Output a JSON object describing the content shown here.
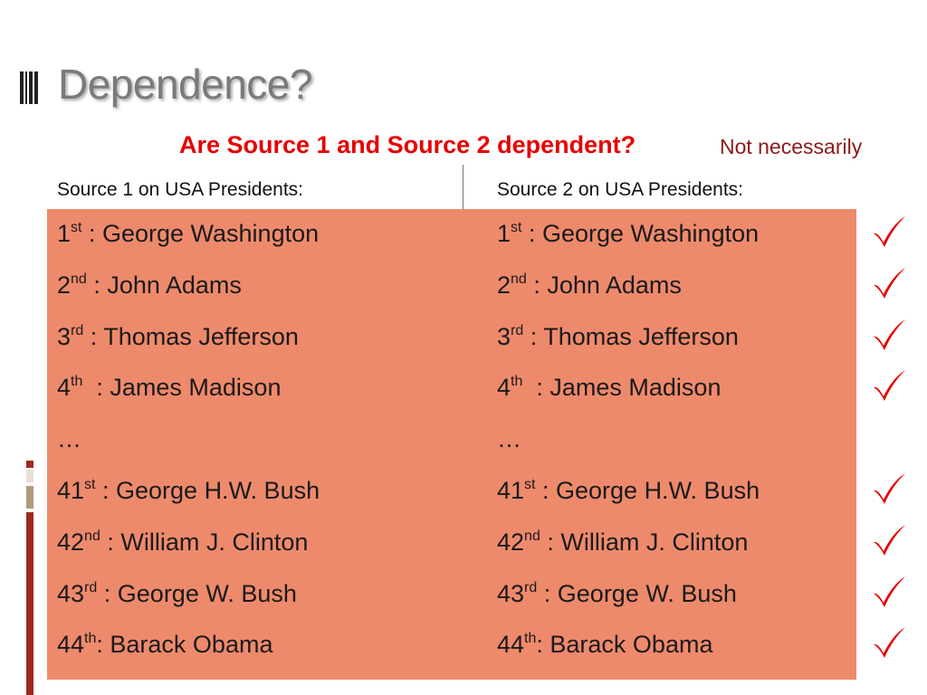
{
  "slide": {
    "title": "Dependence?",
    "question": "Are Source 1 and Source 2 dependent?",
    "answer": "Not necessarily",
    "source1_header": "Source 1 on USA Presidents:",
    "source2_header": "Source 2 on USA Presidents:"
  },
  "rows": [
    {
      "num": "1",
      "suffix": "st",
      "name": " : George Washington",
      "check": true
    },
    {
      "num": "2",
      "suffix": "nd",
      "name": " : John Adams",
      "check": true
    },
    {
      "num": "3",
      "suffix": "rd",
      "name": " : Thomas Jefferson",
      "check": true
    },
    {
      "num": "4",
      "suffix": "th",
      "name": "  : James Madison",
      "check": true
    },
    {
      "num": "…",
      "suffix": "",
      "name": "",
      "check": false
    },
    {
      "num": "41",
      "suffix": "st",
      "name": " : George H.W. Bush",
      "check": true
    },
    {
      "num": "42",
      "suffix": "nd",
      "name": " : William J. Clinton",
      "check": true
    },
    {
      "num": "43",
      "suffix": "rd",
      "name": " : George W. Bush",
      "check": true
    },
    {
      "num": "44",
      "suffix": "th",
      "name": ": Barack Obama",
      "check": true
    }
  ],
  "colors": {
    "table_fill": "#ee8a6c",
    "question": "#e60000",
    "answer": "#8b1a1a",
    "check": "#e60000",
    "accent_dark": "#9e2a20",
    "accent_tan": "#b09a7c"
  },
  "icons": {
    "check": "checkmark-icon",
    "title_marker": "title-bullet-icon"
  }
}
